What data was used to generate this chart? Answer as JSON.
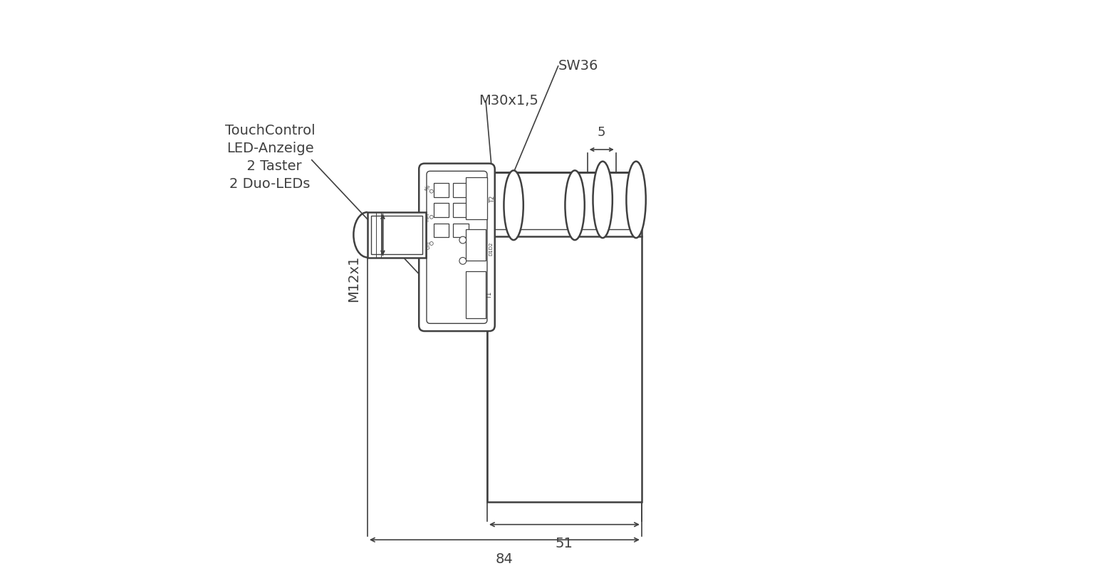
{
  "bg_color": "#ffffff",
  "line_color": "#404040",
  "dim_color": "#404040",
  "text_color": "#404040",
  "labels": {
    "touchcontrol": "TouchControl\nLED-Anzeige\n  2 Taster\n2 Duo-LEDs",
    "sw36": "SW36",
    "m30": "M30x1,5",
    "m12": "M12x1",
    "dim5": "5",
    "dim51": "51",
    "dim84": "84"
  },
  "figsize": [
    15.36,
    7.95
  ],
  "dpi": 100
}
